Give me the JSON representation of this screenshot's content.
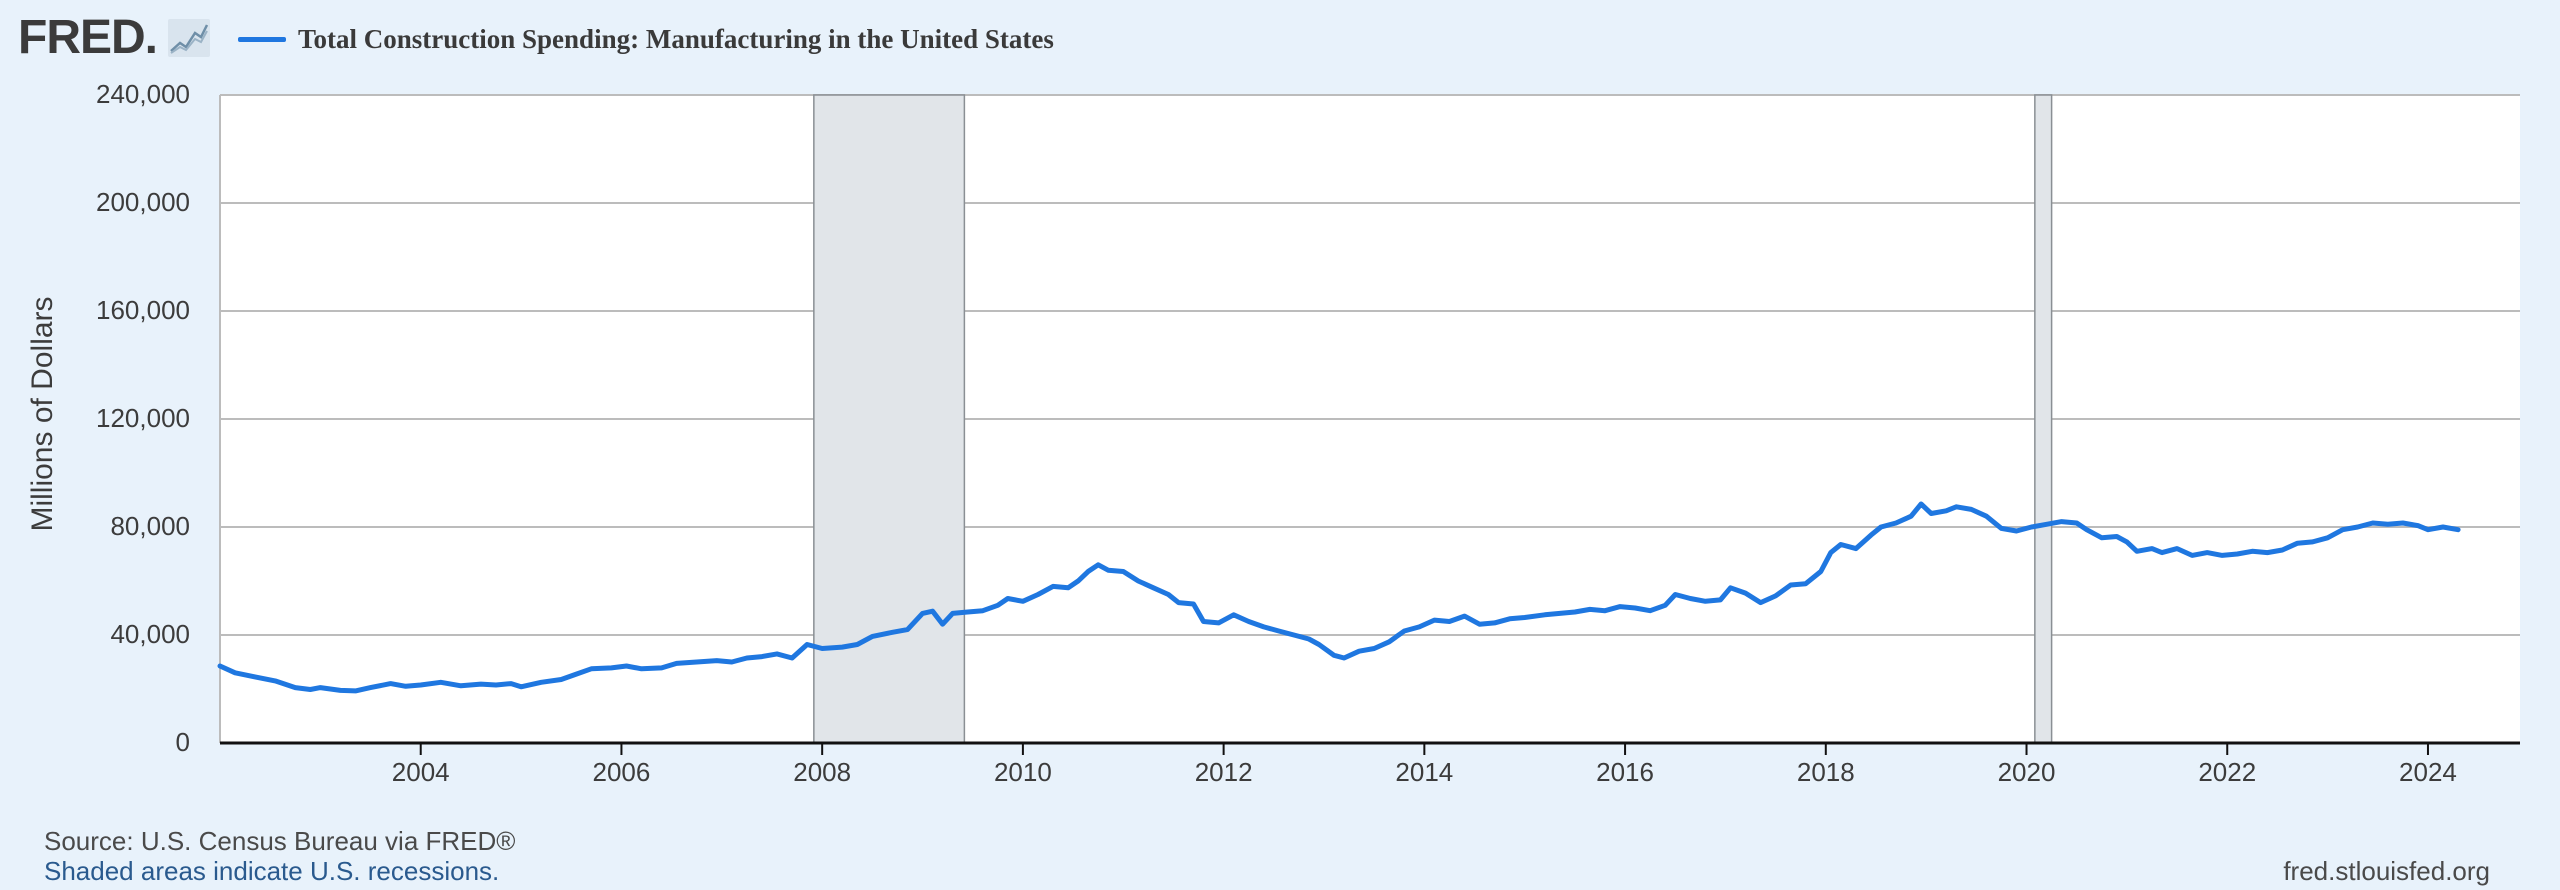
{
  "header": {
    "logo_text": "FRED",
    "logo_dot": ".",
    "legend_label": "Total Construction Spending: Manufacturing in the United States",
    "series_color": "#1f77e0"
  },
  "footer": {
    "source": "Source: U.S. Census Bureau via FRED®",
    "recession_note": "Shaded areas indicate U.S. recessions.",
    "site": "fred.stlouisfed.org"
  },
  "chart_data": {
    "type": "line",
    "title": "Total Construction Spending: Manufacturing in the United States",
    "xlabel": "",
    "ylabel": "Millions of Dollars",
    "xlim": [
      2002.0,
      2024.917
    ],
    "ylim": [
      0,
      240000
    ],
    "y_ticks": [
      0,
      40000,
      80000,
      120000,
      160000,
      200000,
      240000
    ],
    "y_tick_labels": [
      "0",
      "40,000",
      "80,000",
      "120,000",
      "160,000",
      "200,000",
      "240,000"
    ],
    "x_ticks": [
      2004,
      2006,
      2008,
      2010,
      2012,
      2014,
      2016,
      2018,
      2020,
      2022,
      2024
    ],
    "x_tick_labels": [
      "2004",
      "2006",
      "2008",
      "2010",
      "2012",
      "2014",
      "2016",
      "2018",
      "2020",
      "2022",
      "2024"
    ],
    "grid": "horizontal",
    "recessions": [
      [
        2007.917,
        2009.417
      ],
      [
        2020.083,
        2020.25
      ]
    ],
    "series": [
      {
        "name": "Total Construction Spending: Manufacturing in the United States",
        "color": "#1f77e0",
        "points": [
          [
            2002.0,
            28500
          ],
          [
            2002.15,
            26000
          ],
          [
            2002.35,
            24500
          ],
          [
            2002.55,
            23000
          ],
          [
            2002.75,
            20500
          ],
          [
            2002.9,
            19800
          ],
          [
            2003.0,
            20500
          ],
          [
            2003.2,
            19500
          ],
          [
            2003.35,
            19300
          ],
          [
            2003.5,
            20500
          ],
          [
            2003.7,
            22000
          ],
          [
            2003.85,
            21000
          ],
          [
            2004.0,
            21500
          ],
          [
            2004.2,
            22500
          ],
          [
            2004.4,
            21200
          ],
          [
            2004.6,
            21800
          ],
          [
            2004.75,
            21500
          ],
          [
            2004.9,
            22000
          ],
          [
            2005.0,
            20800
          ],
          [
            2005.2,
            22500
          ],
          [
            2005.4,
            23500
          ],
          [
            2005.55,
            25500
          ],
          [
            2005.7,
            27500
          ],
          [
            2005.9,
            27800
          ],
          [
            2006.05,
            28500
          ],
          [
            2006.2,
            27500
          ],
          [
            2006.4,
            27800
          ],
          [
            2006.55,
            29500
          ],
          [
            2006.75,
            30000
          ],
          [
            2006.95,
            30500
          ],
          [
            2007.1,
            30000
          ],
          [
            2007.25,
            31500
          ],
          [
            2007.4,
            32000
          ],
          [
            2007.55,
            33000
          ],
          [
            2007.7,
            31500
          ],
          [
            2007.85,
            36500
          ],
          [
            2008.0,
            35000
          ],
          [
            2008.2,
            35500
          ],
          [
            2008.35,
            36500
          ],
          [
            2008.5,
            39500
          ],
          [
            2008.7,
            41000
          ],
          [
            2008.85,
            42000
          ],
          [
            2009.0,
            48000
          ],
          [
            2009.1,
            48800
          ],
          [
            2009.2,
            44000
          ],
          [
            2009.3,
            48000
          ],
          [
            2009.45,
            48500
          ],
          [
            2009.6,
            49000
          ],
          [
            2009.75,
            51000
          ],
          [
            2009.85,
            53500
          ],
          [
            2010.0,
            52500
          ],
          [
            2010.15,
            55000
          ],
          [
            2010.3,
            58000
          ],
          [
            2010.45,
            57500
          ],
          [
            2010.55,
            60000
          ],
          [
            2010.65,
            63500
          ],
          [
            2010.75,
            66000
          ],
          [
            2010.85,
            64000
          ],
          [
            2011.0,
            63500
          ],
          [
            2011.15,
            60000
          ],
          [
            2011.3,
            57500
          ],
          [
            2011.45,
            55000
          ],
          [
            2011.55,
            52000
          ],
          [
            2011.7,
            51500
          ],
          [
            2011.8,
            45000
          ],
          [
            2011.95,
            44500
          ],
          [
            2012.1,
            47500
          ],
          [
            2012.25,
            45000
          ],
          [
            2012.4,
            43000
          ],
          [
            2012.55,
            41500
          ],
          [
            2012.7,
            40000
          ],
          [
            2012.85,
            38500
          ],
          [
            2012.95,
            36500
          ],
          [
            2013.1,
            32500
          ],
          [
            2013.2,
            31500
          ],
          [
            2013.35,
            34000
          ],
          [
            2013.5,
            35000
          ],
          [
            2013.65,
            37500
          ],
          [
            2013.8,
            41500
          ],
          [
            2013.95,
            43000
          ],
          [
            2014.1,
            45500
          ],
          [
            2014.25,
            45000
          ],
          [
            2014.4,
            47000
          ],
          [
            2014.55,
            44000
          ],
          [
            2014.7,
            44500
          ],
          [
            2014.85,
            46000
          ],
          [
            2015.0,
            46500
          ],
          [
            2015.2,
            47500
          ],
          [
            2015.35,
            48000
          ],
          [
            2015.5,
            48500
          ],
          [
            2015.65,
            49500
          ],
          [
            2015.8,
            49000
          ],
          [
            2015.95,
            50500
          ],
          [
            2016.1,
            50000
          ],
          [
            2016.25,
            49000
          ],
          [
            2016.4,
            51000
          ],
          [
            2016.5,
            55000
          ],
          [
            2016.65,
            53500
          ],
          [
            2016.8,
            52500
          ],
          [
            2016.95,
            53000
          ],
          [
            2017.05,
            57500
          ],
          [
            2017.2,
            55500
          ],
          [
            2017.35,
            52000
          ],
          [
            2017.5,
            54500
          ],
          [
            2017.65,
            58500
          ],
          [
            2017.8,
            59000
          ],
          [
            2017.95,
            63500
          ],
          [
            2018.05,
            70500
          ],
          [
            2018.15,
            73500
          ],
          [
            2018.3,
            72000
          ],
          [
            2018.45,
            77000
          ],
          [
            2018.55,
            80000
          ],
          [
            2018.7,
            81500
          ],
          [
            2018.85,
            84000
          ],
          [
            2018.95,
            88500
          ],
          [
            2019.05,
            85000
          ],
          [
            2019.2,
            86000
          ],
          [
            2019.3,
            87500
          ],
          [
            2019.45,
            86500
          ],
          [
            2019.6,
            84000
          ],
          [
            2019.75,
            79500
          ],
          [
            2019.9,
            78500
          ],
          [
            2020.05,
            80000
          ],
          [
            2020.2,
            81000
          ],
          [
            2020.35,
            82000
          ],
          [
            2020.5,
            81500
          ],
          [
            2020.6,
            79000
          ],
          [
            2020.75,
            76000
          ],
          [
            2020.9,
            76500
          ],
          [
            2021.0,
            74500
          ],
          [
            2021.1,
            71000
          ],
          [
            2021.25,
            72000
          ],
          [
            2021.35,
            70500
          ],
          [
            2021.5,
            72000
          ],
          [
            2021.65,
            69500
          ],
          [
            2021.8,
            70500
          ],
          [
            2021.95,
            69500
          ],
          [
            2022.1,
            70000
          ],
          [
            2022.25,
            71000
          ],
          [
            2022.4,
            70500
          ],
          [
            2022.55,
            71500
          ],
          [
            2022.7,
            74000
          ],
          [
            2022.85,
            74500
          ],
          [
            2023.0,
            76000
          ],
          [
            2023.15,
            79000
          ],
          [
            2023.3,
            80000
          ],
          [
            2023.45,
            81500
          ],
          [
            2023.6,
            81000
          ],
          [
            2023.75,
            81500
          ],
          [
            2023.9,
            80500
          ],
          [
            2024.0,
            79000
          ],
          [
            2024.15,
            80000
          ],
          [
            2024.3,
            79000
          ]
        ]
      }
    ]
  }
}
